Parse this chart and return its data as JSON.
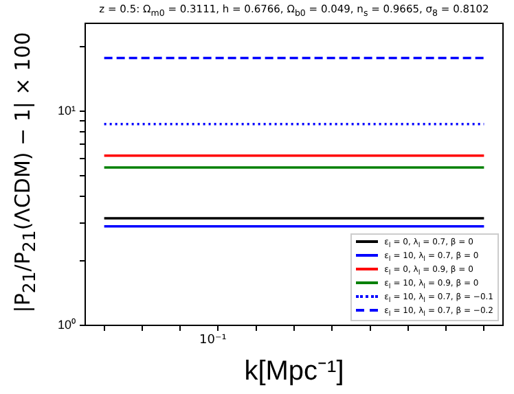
{
  "chart_data": {
    "type": "line",
    "title": "z = 0.5: Ω$_{m0}$ = 0.3111, h = 0.6766, Ω$_{b0}$ = 0.049, n$_{s}$ = 0.9665, σ$_{8}$ = 0.8102",
    "xlabel": "k[Mpc⁻¹]",
    "ylabel": "|P$_{21}$/P$_{21}$(ΛCDM) − 1| × 100",
    "categories": [
      null,
      null,
      null,
      null,
      null,
      null,
      null,
      null,
      null,
      null,
      null
    ],
    "log": "y",
    "grid": false,
    "legend": "bottom right",
    "marker": "none",
    "annotations": [
      "10⁻¹"
    ],
    "ylim": [
      1,
      25.7
    ],
    "yticks": [
      {
        "value": 1,
        "label": "10⁰"
      },
      {
        "value": 2,
        "label": null
      },
      {
        "value": 3,
        "label": null
      },
      {
        "value": 4,
        "label": null
      },
      {
        "value": 5,
        "label": null
      },
      {
        "value": 6,
        "label": null
      },
      {
        "value": 7,
        "label": null
      },
      {
        "value": 8,
        "label": null
      },
      {
        "value": 9,
        "label": null
      },
      {
        "value": 10,
        "label": "10¹"
      },
      {
        "value": 20,
        "label": null
      }
    ],
    "series": [
      {
        "name": "ε$_{l}$ = 0, λ$_{l}$ = 0.7, β = 0",
        "color": "#000000",
        "line_style": "solid",
        "values": [
          3.16,
          3.16,
          3.16,
          3.16,
          3.16,
          3.16,
          3.16,
          3.16,
          3.16,
          3.16,
          3.16
        ]
      },
      {
        "name": "ε$_{l}$ = 10, λ$_{l}$ = 0.7, β = 0",
        "color": "#0000ff",
        "line_style": "solid",
        "values": [
          2.9,
          2.9,
          2.9,
          2.9,
          2.9,
          2.9,
          2.9,
          2.9,
          2.9,
          2.9,
          2.9
        ]
      },
      {
        "name": "ε$_{l}$ = 0, λ$_{l}$ = 0.9, β = 0",
        "color": "#ff0000",
        "line_style": "solid",
        "values": [
          6.2,
          6.2,
          6.2,
          6.2,
          6.2,
          6.2,
          6.2,
          6.2,
          6.2,
          6.2,
          6.2
        ]
      },
      {
        "name": "ε$_{l}$ = 10, λ$_{l}$ = 0.9, β = 0",
        "color": "#008000",
        "line_style": "solid",
        "values": [
          5.46,
          5.46,
          5.46,
          5.46,
          5.46,
          5.46,
          5.46,
          5.46,
          5.46,
          5.46,
          5.46
        ]
      },
      {
        "name": "ε$_{l}$ = 10, λ$_{l}$ = 0.7, β = −0.1",
        "color": "#0000ff",
        "line_style": "dotted",
        "values": [
          8.7,
          8.7,
          8.7,
          8.7,
          8.7,
          8.7,
          8.7,
          8.7,
          8.7,
          8.7,
          8.7
        ]
      },
      {
        "name": "ε$_{l}$ = 10, λ$_{l}$ = 0.7, β = −0.2",
        "color": "#0000ff",
        "line_style": "dashed",
        "values": [
          17.7,
          17.7,
          17.7,
          17.7,
          17.7,
          17.7,
          17.7,
          17.7,
          17.7,
          17.7,
          17.7
        ]
      }
    ]
  }
}
